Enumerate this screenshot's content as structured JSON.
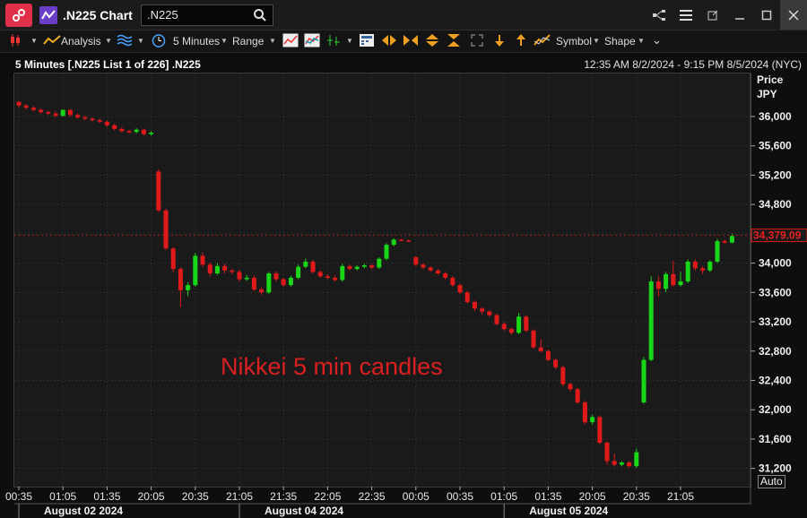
{
  "window": {
    "title": ".N225 Chart",
    "search_value": ".N225"
  },
  "toolbar": {
    "analysis": "Analysis",
    "interval": "5 Minutes",
    "range": "Range",
    "symbol": "Symbol",
    "shape": "Shape"
  },
  "info": {
    "left": "5 Minutes [.N225 List 1 of 226] .N225",
    "right": "12:35 AM 8/2/2024 - 9:15 PM 8/5/2024 (NYC)"
  },
  "axis": {
    "price_label": "Price",
    "currency_label": "JPY",
    "last_price": "34,379.09",
    "auto_label": "Auto"
  },
  "annotation": "Nikkei 5 min candles",
  "colors": {
    "up": "#19d619",
    "down": "#e01a1a",
    "background": "#1a1a1a",
    "grid": "#3a3a3a"
  },
  "chart_data": {
    "type": "candlestick",
    "ylabel": "Price JPY",
    "ylim": [
      31000,
      36250
    ],
    "y_ticks": [
      31200,
      31600,
      32000,
      32400,
      32800,
      33200,
      33600,
      34000,
      34400,
      34800,
      35200,
      35600,
      36000
    ],
    "y_tick_labels": [
      "31,200",
      "31,600",
      "32,000",
      "32,400",
      "32,800",
      "33,200",
      "33,600",
      "34,000",
      "34,400",
      "34,800",
      "35,200",
      "35,600",
      "36,000"
    ],
    "x_tick_labels": [
      "00:35",
      "01:05",
      "01:35",
      "20:05",
      "20:35",
      "21:05",
      "21:35",
      "22:05",
      "22:35",
      "00:05",
      "00:35",
      "01:05",
      "01:35",
      "20:05",
      "20:35",
      "21:05"
    ],
    "x_tick_index": [
      0,
      6,
      12,
      18,
      24,
      30,
      36,
      42,
      48,
      54,
      60,
      66,
      72,
      78,
      84,
      90
    ],
    "date_labels": [
      {
        "label": "August 02 2024",
        "index": 0
      },
      {
        "label": "August 04 2024",
        "index": 30
      },
      {
        "label": "August 05 2024",
        "index": 66
      }
    ],
    "last_price": 34379.09,
    "candles": [
      [
        36200,
        36150,
        36210,
        36120
      ],
      [
        36150,
        36120,
        36170,
        36100
      ],
      [
        36120,
        36090,
        36140,
        36070
      ],
      [
        36090,
        36060,
        36110,
        36040
      ],
      [
        36060,
        36040,
        36080,
        36020
      ],
      [
        36040,
        36010,
        36070,
        35990
      ],
      [
        36010,
        36090,
        36100,
        36000
      ],
      [
        36090,
        36020,
        36100,
        36000
      ],
      [
        36020,
        35990,
        36040,
        35970
      ],
      [
        35990,
        35970,
        36010,
        35950
      ],
      [
        35970,
        35950,
        35990,
        35930
      ],
      [
        35950,
        35930,
        35970,
        35910
      ],
      [
        35930,
        35880,
        35940,
        35860
      ],
      [
        35880,
        35830,
        35900,
        35810
      ],
      [
        35830,
        35800,
        35850,
        35780
      ],
      [
        35800,
        35790,
        35820,
        35770
      ],
      [
        35790,
        35820,
        35840,
        35770
      ],
      [
        35820,
        35760,
        35830,
        35740
      ],
      [
        35760,
        35780,
        35800,
        35740
      ],
      [
        35250,
        34720,
        35280,
        34700
      ],
      [
        34720,
        34200,
        34740,
        34180
      ],
      [
        34200,
        33920,
        34220,
        33880
      ],
      [
        33920,
        33630,
        33950,
        33400
      ],
      [
        33630,
        33700,
        33740,
        33550
      ],
      [
        33700,
        34100,
        34140,
        33680
      ],
      [
        34100,
        33980,
        34150,
        33950
      ],
      [
        33980,
        33860,
        34010,
        33820
      ],
      [
        33860,
        33960,
        34000,
        33840
      ],
      [
        33960,
        33900,
        33990,
        33860
      ],
      [
        33900,
        33880,
        33920,
        33850
      ],
      [
        33880,
        33780,
        33910,
        33750
      ],
      [
        33780,
        33800,
        33840,
        33760
      ],
      [
        33800,
        33640,
        33830,
        33620
      ],
      [
        33640,
        33600,
        33670,
        33570
      ],
      [
        33600,
        33860,
        33880,
        33580
      ],
      [
        33860,
        33780,
        33890,
        33750
      ],
      [
        33780,
        33700,
        33800,
        33680
      ],
      [
        33700,
        33800,
        33830,
        33680
      ],
      [
        33800,
        33950,
        33980,
        33780
      ],
      [
        33950,
        34020,
        34060,
        33930
      ],
      [
        34020,
        33880,
        34040,
        33860
      ],
      [
        33880,
        33820,
        33900,
        33800
      ],
      [
        33820,
        33800,
        33850,
        33780
      ],
      [
        33800,
        33770,
        33830,
        33750
      ],
      [
        33770,
        33960,
        33990,
        33750
      ],
      [
        33960,
        33920,
        33980,
        33900
      ],
      [
        33920,
        33950,
        33970,
        33900
      ],
      [
        33950,
        33970,
        33990,
        33930
      ],
      [
        33970,
        33940,
        33990,
        33920
      ],
      [
        33940,
        34060,
        34080,
        33920
      ],
      [
        34060,
        34250,
        34270,
        34040
      ],
      [
        34250,
        34320,
        34340,
        34230
      ],
      [
        34320,
        34310,
        34330,
        34300
      ],
      [
        34310,
        34305,
        34320,
        34300
      ],
      [
        34080,
        33980,
        34100,
        33960
      ],
      [
        33980,
        33940,
        34000,
        33920
      ],
      [
        33940,
        33900,
        33960,
        33880
      ],
      [
        33900,
        33860,
        33920,
        33840
      ],
      [
        33860,
        33800,
        33880,
        33780
      ],
      [
        33800,
        33700,
        33820,
        33680
      ],
      [
        33700,
        33600,
        33720,
        33580
      ],
      [
        33600,
        33470,
        33620,
        33450
      ],
      [
        33470,
        33380,
        33490,
        33350
      ],
      [
        33380,
        33340,
        33400,
        33300
      ],
      [
        33340,
        33290,
        33360,
        33270
      ],
      [
        33290,
        33170,
        33310,
        33150
      ],
      [
        33170,
        33100,
        33190,
        33080
      ],
      [
        33100,
        33050,
        33120,
        33020
      ],
      [
        33050,
        33270,
        33320,
        33030
      ],
      [
        33270,
        33080,
        33290,
        33060
      ],
      [
        33080,
        32850,
        33100,
        32830
      ],
      [
        32850,
        32800,
        32960,
        32780
      ],
      [
        32800,
        32680,
        32820,
        32660
      ],
      [
        32680,
        32580,
        32700,
        32550
      ],
      [
        32580,
        32350,
        32600,
        32320
      ],
      [
        32350,
        32280,
        32370,
        32250
      ],
      [
        32280,
        32100,
        32300,
        32080
      ],
      [
        32100,
        31830,
        32120,
        31800
      ],
      [
        31830,
        31900,
        31930,
        31800
      ],
      [
        31900,
        31550,
        31920,
        31530
      ],
      [
        31550,
        31300,
        31570,
        31250
      ],
      [
        31300,
        31250,
        31400,
        31230
      ],
      [
        31250,
        31280,
        31300,
        31230
      ],
      [
        31280,
        31230,
        31300,
        31210
      ],
      [
        31230,
        31420,
        31470,
        31210
      ],
      [
        32100,
        32680,
        32720,
        32080
      ],
      [
        32680,
        33750,
        33820,
        32660
      ],
      [
        33750,
        33650,
        33820,
        33550
      ],
      [
        33650,
        33850,
        33880,
        33600
      ],
      [
        33850,
        33700,
        34030,
        33680
      ],
      [
        33700,
        33750,
        33880,
        33680
      ],
      [
        33750,
        34020,
        34050,
        33730
      ],
      [
        34020,
        33930,
        34050,
        33900
      ],
      [
        33930,
        33900,
        33960,
        33850
      ],
      [
        33900,
        34020,
        34040,
        33880
      ],
      [
        34020,
        34300,
        34330,
        34000
      ],
      [
        34300,
        34280,
        34320,
        34260
      ],
      [
        34280,
        34370,
        34400,
        34270
      ]
    ]
  }
}
